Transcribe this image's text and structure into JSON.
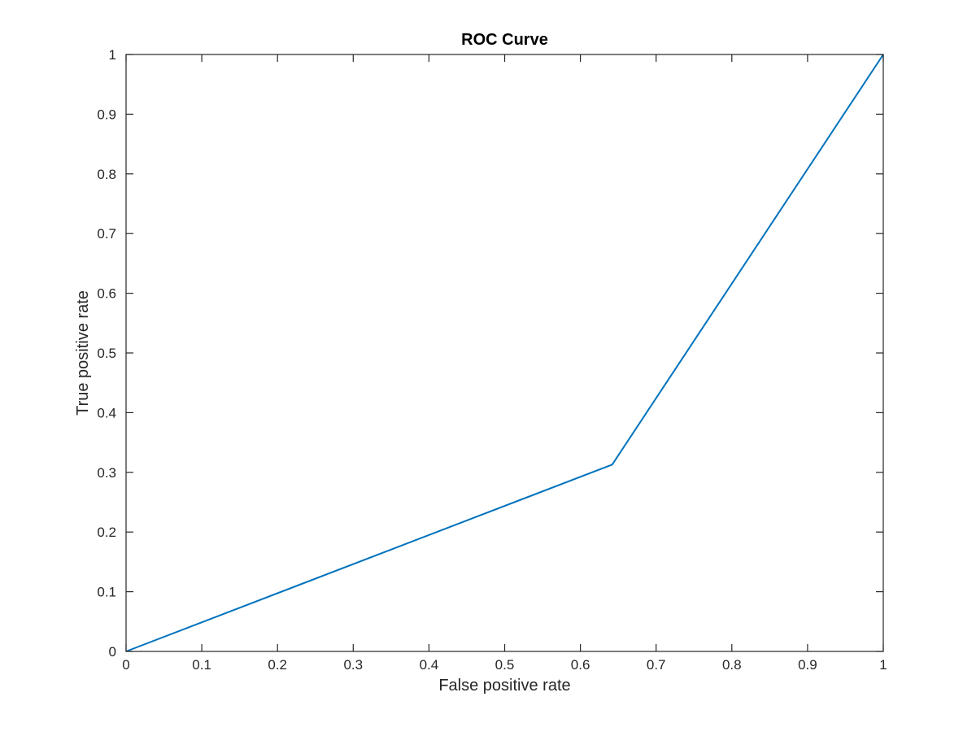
{
  "chart_data": {
    "type": "line",
    "title": "ROC Curve",
    "xlabel": "False positive rate",
    "ylabel": "True positive rate",
    "xlim": [
      0,
      1
    ],
    "ylim": [
      0,
      1
    ],
    "xticks": [
      0,
      0.1,
      0.2,
      0.3,
      0.4,
      0.5,
      0.6,
      0.7,
      0.8,
      0.9,
      1
    ],
    "yticks": [
      0,
      0.1,
      0.2,
      0.3,
      0.4,
      0.5,
      0.6,
      0.7,
      0.8,
      0.9,
      1
    ],
    "xtick_labels": [
      "0",
      "0.1",
      "0.2",
      "0.3",
      "0.4",
      "0.5",
      "0.6",
      "0.7",
      "0.8",
      "0.9",
      "1"
    ],
    "ytick_labels": [
      "0",
      "0.1",
      "0.2",
      "0.3",
      "0.4",
      "0.5",
      "0.6",
      "0.7",
      "0.8",
      "0.9",
      "1"
    ],
    "grid": false,
    "series": [
      {
        "color": "#0072BD",
        "x": [
          0,
          0.642,
          1
        ],
        "y": [
          0,
          0.313,
          1
        ]
      }
    ]
  }
}
